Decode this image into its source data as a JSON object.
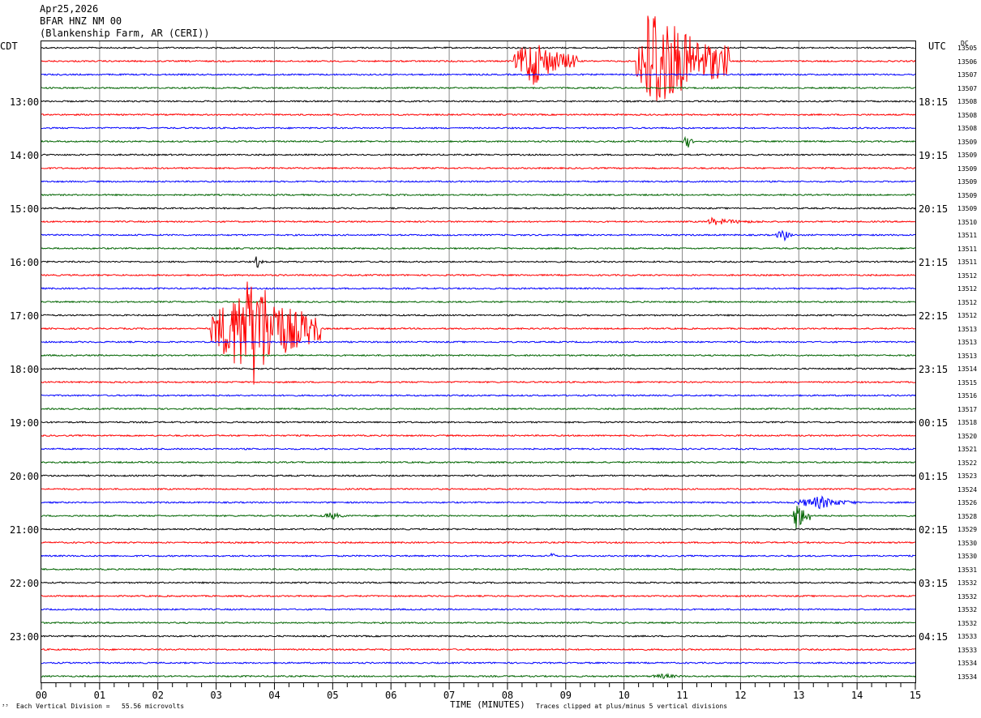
{
  "header": {
    "date": "Apr25,2026",
    "station": "BFAR HNZ NM 00",
    "location": "(Blankenship Farm, AR (CERI))"
  },
  "labels": {
    "left_timezone": "CDT",
    "right_timezone": "UTC",
    "dc_label": "DC",
    "corner_mark": "³³"
  },
  "footer": {
    "scale_text": "Each Vertical Division =   55.56 microvolts",
    "xaxis_title": "TIME (MINUTES)",
    "clip_text": "Traces clipped at plus/minus 5 vertical divisions"
  },
  "colors": {
    "trace_cycle": [
      "#000000",
      "#ff0000",
      "#0000ff",
      "#006400"
    ],
    "grid": "#888888"
  },
  "chart_data": {
    "type": "line",
    "title": "BFAR HNZ NM 00",
    "xlabel": "TIME (MINUTES)",
    "xlim": [
      0,
      15
    ],
    "x_ticks": [
      "00",
      "01",
      "02",
      "03",
      "04",
      "05",
      "06",
      "07",
      "08",
      "09",
      "10",
      "11",
      "12",
      "13",
      "14",
      "15"
    ],
    "left_hour_labels": [
      "13:00",
      "14:00",
      "15:00",
      "16:00",
      "17:00",
      "18:00",
      "19:00",
      "20:00",
      "21:00",
      "22:00",
      "23:00"
    ],
    "right_hour_labels": [
      "18:15",
      "19:15",
      "20:15",
      "21:15",
      "22:15",
      "23:15",
      "00:15",
      "01:15",
      "02:15",
      "03:15",
      "04:15"
    ],
    "trace_dc_values": [
      "13505",
      "13506",
      "13507",
      "13507",
      "13508",
      "13508",
      "13508",
      "13509",
      "13509",
      "13509",
      "13509",
      "13509",
      "13509",
      "13510",
      "13511",
      "13511",
      "13511",
      "13512",
      "13512",
      "13512",
      "13512",
      "13513",
      "13513",
      "13513",
      "13514",
      "13515",
      "13516",
      "13517",
      "13518",
      "13520",
      "13521",
      "13522",
      "13523",
      "13524",
      "13526",
      "13528",
      "13529",
      "13530",
      "13530",
      "13531",
      "13532",
      "13532",
      "13532",
      "13532",
      "13533",
      "13533",
      "13534",
      "13534"
    ],
    "events": [
      {
        "trace": 1,
        "start_min": 8.1,
        "end_min": 9.2,
        "peak_min": 8.45,
        "amp_div": 2.0
      },
      {
        "trace": 1,
        "start_min": 10.2,
        "end_min": 11.8,
        "peak_min": 10.5,
        "amp_div": 5.0
      },
      {
        "trace": 7,
        "start_min": 11.0,
        "end_min": 11.2,
        "peak_min": 11.1,
        "amp_div": 0.5
      },
      {
        "trace": 13,
        "start_min": 11.4,
        "end_min": 12.5,
        "peak_min": 11.5,
        "amp_div": 0.3
      },
      {
        "trace": 14,
        "start_min": 12.6,
        "end_min": 12.9,
        "peak_min": 12.75,
        "amp_div": 0.5
      },
      {
        "trace": 16,
        "start_min": 3.65,
        "end_min": 3.8,
        "peak_min": 3.7,
        "amp_div": 0.6
      },
      {
        "trace": 21,
        "start_min": 2.9,
        "end_min": 4.8,
        "peak_min": 3.7,
        "amp_div": 4.5
      },
      {
        "trace": 35,
        "start_min": 4.8,
        "end_min": 5.3,
        "peak_min": 5.0,
        "amp_div": 0.3
      },
      {
        "trace": 34,
        "start_min": 12.9,
        "end_min": 14.0,
        "peak_min": 13.4,
        "amp_div": 0.5
      },
      {
        "trace": 35,
        "start_min": 12.9,
        "end_min": 13.2,
        "peak_min": 12.95,
        "amp_div": 1.5
      },
      {
        "trace": 38,
        "start_min": 8.7,
        "end_min": 8.85,
        "peak_min": 8.78,
        "amp_div": 0.3
      },
      {
        "trace": 47,
        "start_min": 10.4,
        "end_min": 11.2,
        "peak_min": 10.7,
        "amp_div": 0.2
      }
    ]
  }
}
